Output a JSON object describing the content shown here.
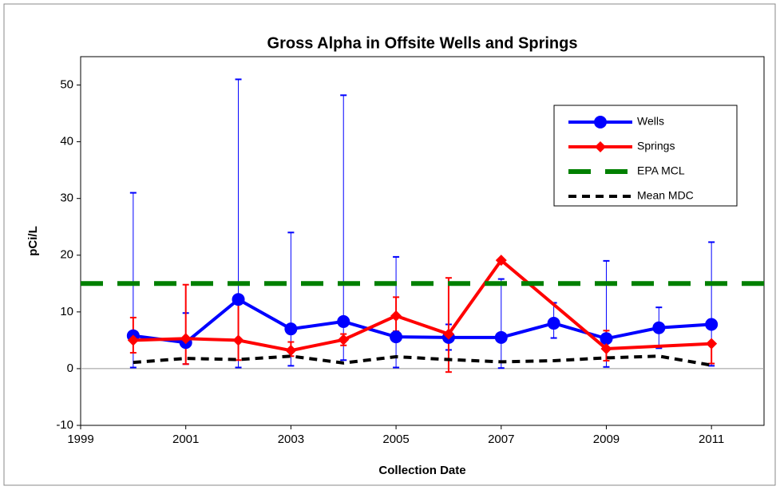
{
  "chart_data": {
    "type": "line",
    "title": "Gross Alpha in Offsite Wells and Springs",
    "xlabel": "Collection Date",
    "ylabel": "pCi/L",
    "xlim": [
      1999,
      2012
    ],
    "xticks": [
      1999,
      2001,
      2003,
      2005,
      2007,
      2009,
      2011
    ],
    "ylim": [
      -10,
      55
    ],
    "yticks": [
      -10,
      0,
      10,
      20,
      30,
      40,
      50
    ],
    "legend": "upper right",
    "series": [
      {
        "name": "Wells",
        "color": "#0000ff",
        "marker": "circle",
        "style": "solid",
        "x": [
          2000,
          2001,
          2002,
          2003,
          2004,
          2005,
          2006,
          2007,
          2008,
          2009,
          2010,
          2011
        ],
        "values": [
          5.8,
          4.6,
          12.2,
          7.0,
          8.3,
          5.6,
          5.5,
          5.5,
          8.0,
          5.3,
          7.2,
          7.8
        ],
        "error_upper": [
          31,
          9.8,
          51,
          24,
          48.2,
          19.7,
          7.8,
          15.8,
          11.6,
          19,
          10.8,
          22.3
        ],
        "error_lower": [
          0.2,
          0.8,
          0.2,
          0.5,
          1.5,
          0.2,
          3.3,
          0.1,
          5.4,
          0.3,
          3.6,
          0.5
        ]
      },
      {
        "name": "Springs",
        "color": "#ff0000",
        "marker": "diamond",
        "style": "solid",
        "x": [
          2000,
          2001,
          2002,
          2003,
          2004,
          2005,
          2006,
          2007,
          2009,
          2011
        ],
        "values": [
          5.0,
          5.3,
          5.0,
          3.2,
          5.1,
          9.3,
          6.1,
          19.1,
          3.5,
          4.4
        ],
        "error_upper": [
          9.0,
          14.8,
          11.5,
          4.7,
          6.1,
          12.6,
          16.0,
          null,
          6.7,
          null
        ],
        "error_lower": [
          2.8,
          0.8,
          1.5,
          2.2,
          4.1,
          6.6,
          -0.6,
          null,
          1.4,
          0.9
        ]
      },
      {
        "name": "EPA MCL",
        "color": "#008000",
        "marker": "none",
        "style": "longdash",
        "x": [
          1999,
          2012
        ],
        "values": [
          15,
          15
        ]
      },
      {
        "name": "Mean MDC",
        "color": "#000000",
        "marker": "none",
        "style": "dashed",
        "x": [
          2000,
          2001,
          2002,
          2003,
          2004,
          2005,
          2006,
          2007,
          2008,
          2009,
          2010,
          2011
        ],
        "values": [
          1.1,
          1.8,
          1.6,
          2.2,
          1.0,
          2.1,
          1.6,
          1.2,
          1.4,
          1.9,
          2.2,
          0.6
        ]
      }
    ]
  }
}
